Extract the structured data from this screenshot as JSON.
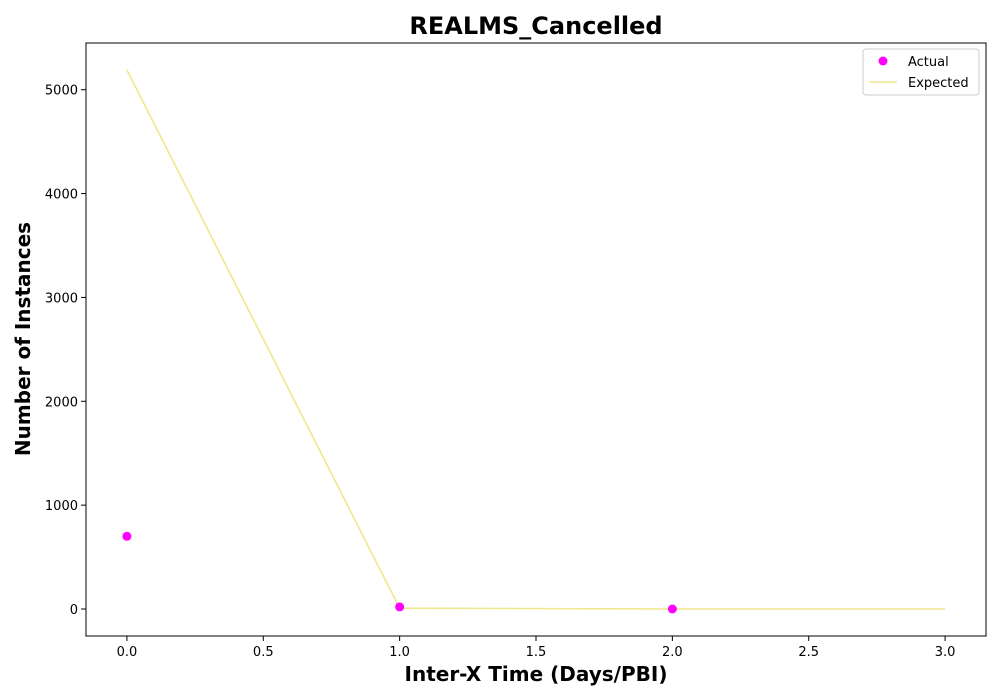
{
  "chart_data": {
    "type": "scatter",
    "title": "REALMS_Cancelled",
    "xlabel": "Inter-X Time (Days/PBI)",
    "ylabel": "Number of Instances",
    "xlim": [
      -0.15,
      3.15
    ],
    "ylim": [
      -260,
      5450
    ],
    "xticks": [
      "0.0",
      "0.5",
      "1.0",
      "1.5",
      "2.0",
      "2.5",
      "3.0"
    ],
    "xtick_values": [
      0,
      0.5,
      1,
      1.5,
      2,
      2.5,
      3
    ],
    "yticks": [
      "0",
      "1000",
      "2000",
      "3000",
      "4000",
      "5000"
    ],
    "ytick_values": [
      0,
      1000,
      2000,
      3000,
      4000,
      5000
    ],
    "grid": false,
    "legend_position": "top-right",
    "series": [
      {
        "name": "Actual",
        "kind": "scatter",
        "color": "#ff00ff",
        "x": [
          0,
          1,
          2
        ],
        "y": [
          700,
          20,
          0
        ]
      },
      {
        "name": "Expected",
        "kind": "line",
        "color": "#f0e68c",
        "x": [
          0,
          1,
          2,
          3
        ],
        "y": [
          5190,
          8,
          0,
          0
        ]
      }
    ]
  }
}
